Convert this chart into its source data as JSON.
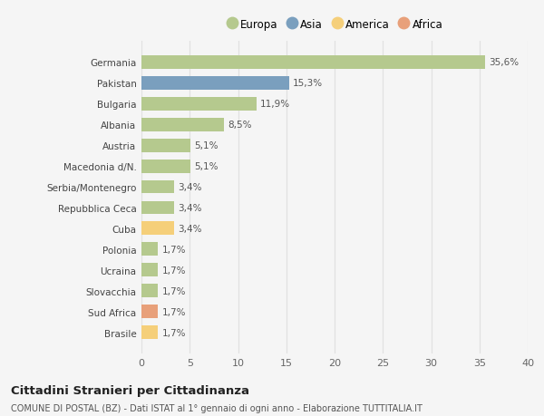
{
  "categories": [
    "Germania",
    "Pakistan",
    "Bulgaria",
    "Albania",
    "Austria",
    "Macedonia d/N.",
    "Serbia/Montenegro",
    "Repubblica Ceca",
    "Cuba",
    "Polonia",
    "Ucraina",
    "Slovacchia",
    "Sud Africa",
    "Brasile"
  ],
  "values": [
    35.6,
    15.3,
    11.9,
    8.5,
    5.1,
    5.1,
    3.4,
    3.4,
    3.4,
    1.7,
    1.7,
    1.7,
    1.7,
    1.7
  ],
  "labels": [
    "35,6%",
    "15,3%",
    "11,9%",
    "8,5%",
    "5,1%",
    "5,1%",
    "3,4%",
    "3,4%",
    "3,4%",
    "1,7%",
    "1,7%",
    "1,7%",
    "1,7%",
    "1,7%"
  ],
  "colors": [
    "#b5c98e",
    "#7a9fbe",
    "#b5c98e",
    "#b5c98e",
    "#b5c98e",
    "#b5c98e",
    "#b5c98e",
    "#b5c98e",
    "#f5cf7a",
    "#b5c98e",
    "#b5c98e",
    "#b5c98e",
    "#e8a07a",
    "#f5cf7a"
  ],
  "legend_labels": [
    "Europa",
    "Asia",
    "America",
    "Africa"
  ],
  "legend_colors": [
    "#b5c98e",
    "#7a9fbe",
    "#f5cf7a",
    "#e8a07a"
  ],
  "title": "Cittadini Stranieri per Cittadinanza",
  "subtitle": "COMUNE DI POSTAL (BZ) - Dati ISTAT al 1° gennaio di ogni anno - Elaborazione TUTTITALIA.IT",
  "xlim": [
    0,
    40
  ],
  "xticks": [
    0,
    5,
    10,
    15,
    20,
    25,
    30,
    35,
    40
  ],
  "background_color": "#f5f5f5",
  "grid_color": "#e0e0e0",
  "bar_height": 0.65
}
